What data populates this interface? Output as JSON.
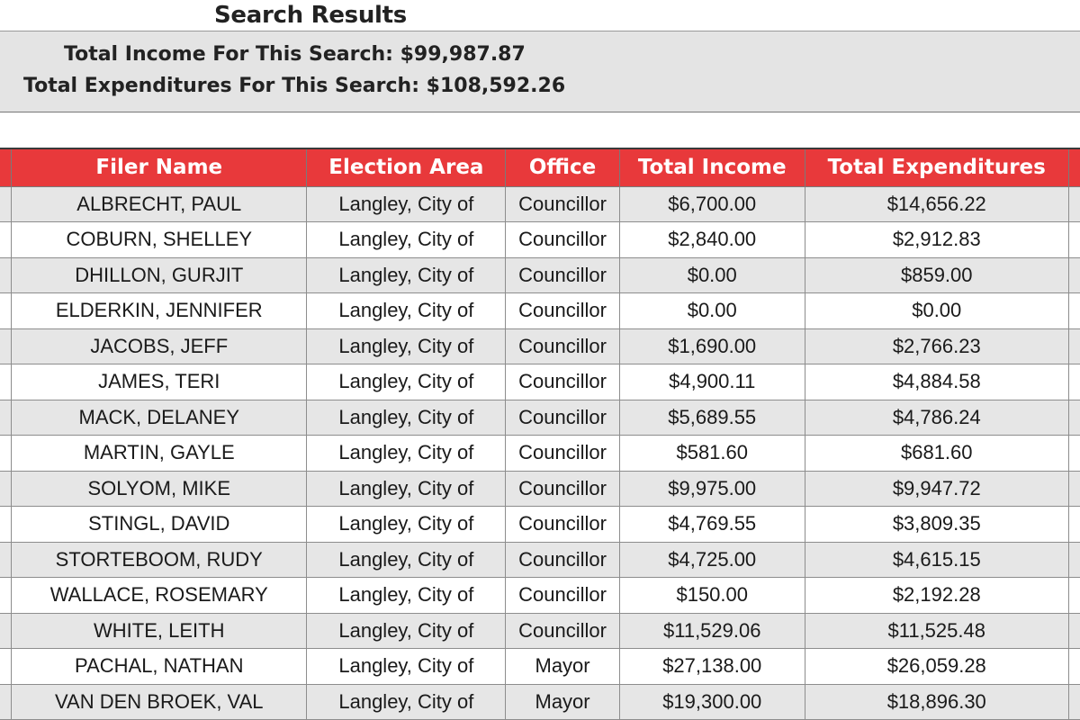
{
  "page": {
    "title": "Search Results"
  },
  "summary": {
    "total_income": "Total Income For This Search: $99,987.87",
    "total_expenditures": "Total Expenditures For This Search: $108,592.26"
  },
  "table": {
    "headers": [
      "Filer Name",
      "Election Area",
      "Office",
      "Total Income",
      "Total Expenditures"
    ],
    "rows": [
      [
        "ALBRECHT, PAUL",
        "Langley, City of",
        "Councillor",
        "$6,700.00",
        "$14,656.22"
      ],
      [
        "COBURN, SHELLEY",
        "Langley, City of",
        "Councillor",
        "$2,840.00",
        "$2,912.83"
      ],
      [
        "DHILLON, GURJIT",
        "Langley, City of",
        "Councillor",
        "$0.00",
        "$859.00"
      ],
      [
        "ELDERKIN, JENNIFER",
        "Langley, City of",
        "Councillor",
        "$0.00",
        "$0.00"
      ],
      [
        "JACOBS, JEFF",
        "Langley, City of",
        "Councillor",
        "$1,690.00",
        "$2,766.23"
      ],
      [
        "JAMES, TERI",
        "Langley, City of",
        "Councillor",
        "$4,900.11",
        "$4,884.58"
      ],
      [
        "MACK, DELANEY",
        "Langley, City of",
        "Councillor",
        "$5,689.55",
        "$4,786.24"
      ],
      [
        "MARTIN, GAYLE",
        "Langley, City of",
        "Councillor",
        "$581.60",
        "$681.60"
      ],
      [
        "SOLYOM, MIKE",
        "Langley, City of",
        "Councillor",
        "$9,975.00",
        "$9,947.72"
      ],
      [
        "STINGL, DAVID",
        "Langley, City of",
        "Councillor",
        "$4,769.55",
        "$3,809.35"
      ],
      [
        "STORTEBOOM, RUDY",
        "Langley, City of",
        "Councillor",
        "$4,725.00",
        "$4,615.15"
      ],
      [
        "WALLACE, ROSEMARY",
        "Langley, City of",
        "Councillor",
        "$150.00",
        "$2,192.28"
      ],
      [
        "WHITE, LEITH",
        "Langley, City of",
        "Councillor",
        "$11,529.06",
        "$11,525.48"
      ],
      [
        "PACHAL, NATHAN",
        "Langley, City of",
        "Mayor",
        "$27,138.00",
        "$26,059.28"
      ],
      [
        "VAN DEN BROEK, VAL",
        "Langley, City of",
        "Mayor",
        "$19,300.00",
        "$18,896.30"
      ]
    ]
  },
  "colors": {
    "header_red": "#e8393b",
    "row_stripe": "#e6e6e6",
    "summary_bg": "#e4e4e4"
  }
}
